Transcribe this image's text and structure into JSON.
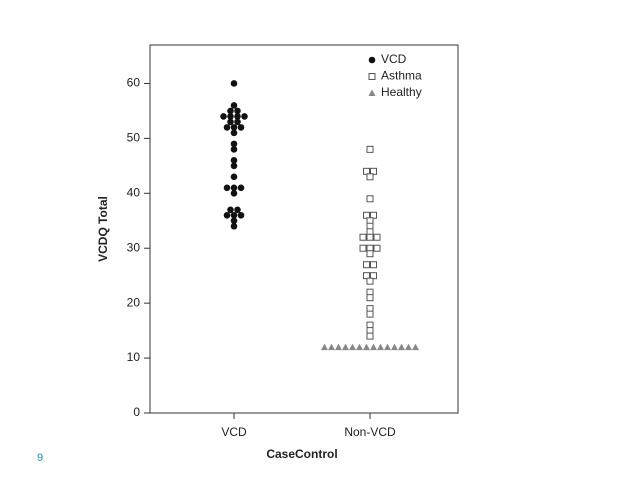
{
  "page_number": "9",
  "chart_data": {
    "type": "strip",
    "x_label": "CaseControl",
    "y_label": "VCDQ Total",
    "categories": [
      "VCD",
      "Non-VCD"
    ],
    "ylim": [
      0,
      67
    ],
    "yticks": [
      0,
      10,
      20,
      30,
      40,
      50,
      60
    ],
    "legend": "top-right",
    "series": [
      {
        "name": "VCD",
        "x": "VCD",
        "marker": "circle",
        "color": "#111111",
        "values": [
          60,
          56,
          55,
          55,
          54,
          54,
          54,
          54,
          53,
          53,
          52,
          52,
          52,
          51,
          49,
          48,
          46,
          45,
          43,
          41,
          41,
          41,
          40,
          37,
          37,
          36,
          36,
          36,
          35,
          34
        ]
      },
      {
        "name": "Asthma",
        "x": "Non-VCD",
        "marker": "square",
        "color": "#555555",
        "values": [
          48,
          44,
          44,
          43,
          39,
          36,
          36,
          35,
          34,
          33,
          32,
          32,
          32,
          30,
          30,
          30,
          29,
          27,
          27,
          25,
          25,
          24,
          22,
          21,
          19,
          18,
          16,
          15,
          14
        ]
      },
      {
        "name": "Healthy",
        "x": "Non-VCD",
        "marker": "triangle",
        "color": "#888888",
        "values": [
          12,
          12,
          12,
          12,
          12,
          12,
          12,
          12,
          12,
          12,
          12,
          12,
          12,
          12
        ]
      }
    ]
  }
}
